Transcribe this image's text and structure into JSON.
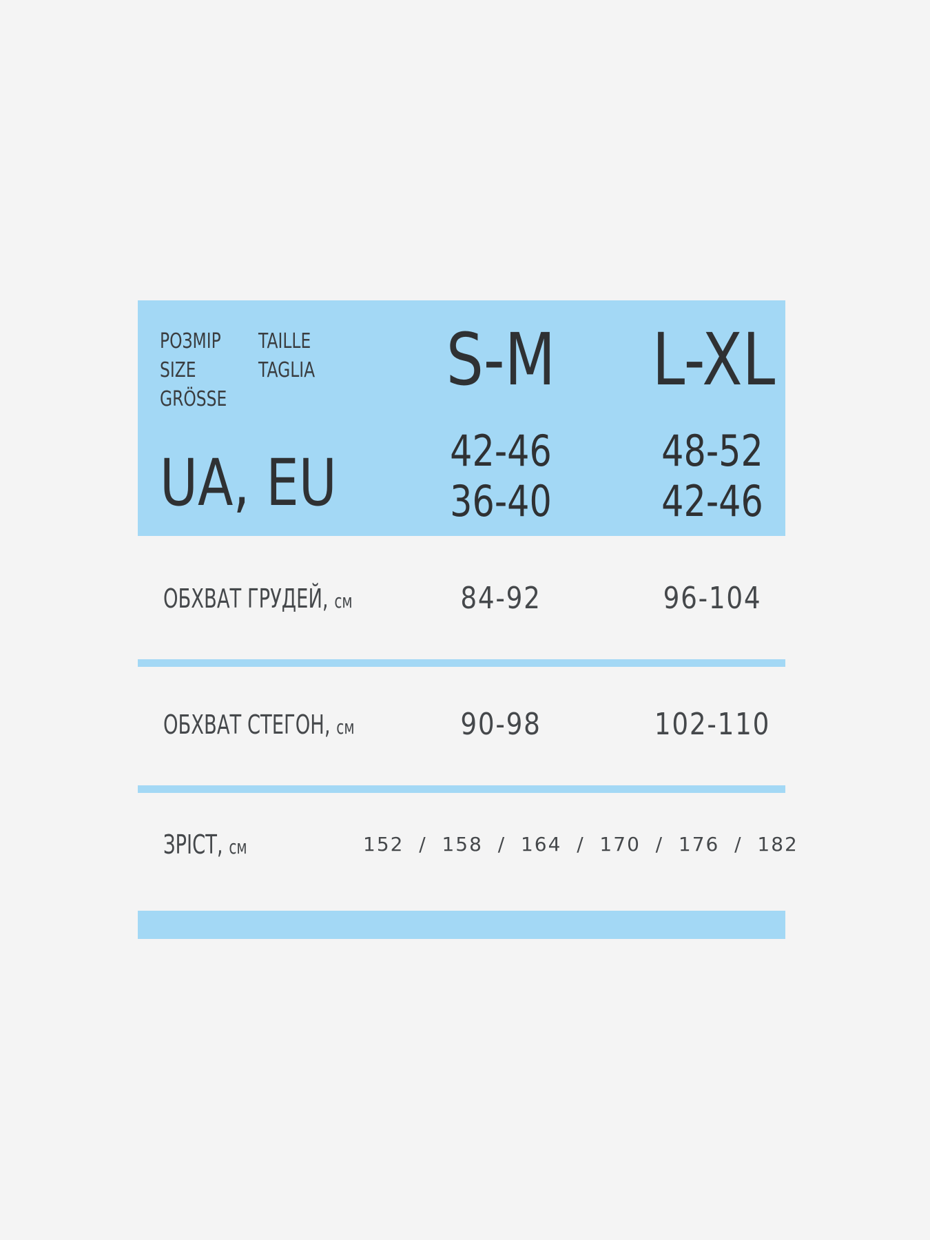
{
  "header": {
    "labels": [
      "РОЗМІР",
      "SIZE",
      "GRÖSSE",
      "TAILLE",
      "TAGLIA"
    ],
    "region": "UA, EU",
    "sizes": [
      {
        "name": "S-M",
        "ua": "42-46",
        "eu": "36-40"
      },
      {
        "name": "L-XL",
        "ua": "48-52",
        "eu": "42-46"
      }
    ]
  },
  "rows": [
    {
      "label": "ОБХВАТ ГРУДЕЙ,",
      "unit": "см",
      "values": [
        "84-92",
        "96-104"
      ]
    },
    {
      "label": "ОБХВАТ СТЕГОН,",
      "unit": "см",
      "values": [
        "90-98",
        "102-110"
      ]
    }
  ],
  "height_row": {
    "label": "ЗРІСТ,",
    "unit": "см",
    "values": "152  /  158  /  164  /  170  /  176  /  182"
  },
  "colors": {
    "accent": "#a3d8f5",
    "background": "#f4f4f4",
    "text": "#2f3133"
  }
}
